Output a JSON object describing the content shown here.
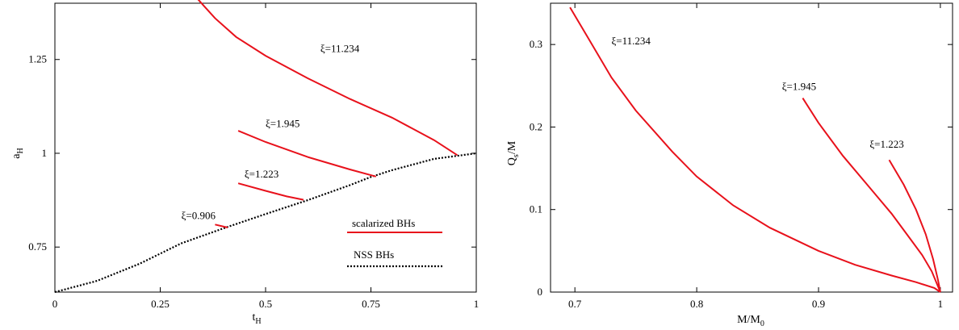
{
  "colors": {
    "scalarized": "#e8111b",
    "nss": "#000000"
  },
  "chart_data": [
    {
      "type": "line",
      "xlabel": "t",
      "xlabel_sub": "H",
      "ylabel": "a",
      "ylabel_sub": "H",
      "xlim": [
        0,
        1
      ],
      "ylim": [
        0.63,
        1.4
      ],
      "xticks": [
        0,
        0.25,
        0.5,
        0.75,
        1
      ],
      "xtick_labels": [
        "0",
        "0.25",
        "0.5",
        "0.75",
        "1"
      ],
      "yticks": [
        0.75,
        1,
        1.25
      ],
      "ytick_labels": [
        "0.75",
        "1",
        "1.25"
      ],
      "legend": {
        "position": "bottom-right",
        "entries": [
          {
            "label": "scalarized BHs",
            "style": "solid"
          },
          {
            "label": "NSS BHs",
            "style": "dotted"
          }
        ]
      },
      "series": [
        {
          "name": "NSS BHs",
          "style": "dotted",
          "points": [
            [
              0,
              0.63
            ],
            [
              0.1,
              0.66
            ],
            [
              0.2,
              0.705
            ],
            [
              0.3,
              0.76
            ],
            [
              0.4,
              0.8
            ],
            [
              0.5,
              0.838
            ],
            [
              0.6,
              0.875
            ],
            [
              0.7,
              0.915
            ],
            [
              0.75,
              0.937
            ],
            [
              0.8,
              0.955
            ],
            [
              0.9,
              0.985
            ],
            [
              1,
              1
            ]
          ]
        },
        {
          "name": "ξ=11.234",
          "style": "solid",
          "points": [
            [
              0.34,
              1.41
            ],
            [
              0.38,
              1.36
            ],
            [
              0.43,
              1.31
            ],
            [
              0.5,
              1.26
            ],
            [
              0.6,
              1.2
            ],
            [
              0.7,
              1.145
            ],
            [
              0.8,
              1.095
            ],
            [
              0.9,
              1.035
            ],
            [
              0.955,
              0.995
            ]
          ]
        },
        {
          "name": "ξ=1.945",
          "style": "solid",
          "points": [
            [
              0.435,
              1.06
            ],
            [
              0.5,
              1.03
            ],
            [
              0.6,
              0.99
            ],
            [
              0.7,
              0.957
            ],
            [
              0.762,
              0.938
            ]
          ]
        },
        {
          "name": "ξ=1.223",
          "style": "solid",
          "points": [
            [
              0.435,
              0.92
            ],
            [
              0.5,
              0.9
            ],
            [
              0.55,
              0.885
            ],
            [
              0.59,
              0.876
            ]
          ]
        },
        {
          "name": "ξ=0.906",
          "style": "solid",
          "points": [
            [
              0.38,
              0.81
            ],
            [
              0.41,
              0.802
            ]
          ]
        }
      ],
      "annotations": [
        {
          "text": "ξ=11.234",
          "x": 0.63,
          "y": 1.27
        },
        {
          "text": "ξ=1.945",
          "x": 0.5,
          "y": 1.07
        },
        {
          "text": "ξ=1.223",
          "x": 0.45,
          "y": 0.935
        },
        {
          "text": "ξ=0.906",
          "x": 0.3,
          "y": 0.825
        }
      ]
    },
    {
      "type": "line",
      "xlabel": "M/M",
      "xlabel_sub": "0",
      "ylabel": "Q",
      "ylabel_sub": "s",
      "ylabel_tail": "/M",
      "xlim": [
        0.68,
        1.01
      ],
      "ylim": [
        0,
        0.35
      ],
      "xticks": [
        0.7,
        0.8,
        0.9,
        1
      ],
      "xtick_labels": [
        "0.7",
        "0.8",
        "0.9",
        "1"
      ],
      "yticks": [
        0,
        0.1,
        0.2,
        0.3
      ],
      "ytick_labels": [
        "0",
        "0.1",
        "0.2",
        "0.3"
      ],
      "series": [
        {
          "name": "ξ=11.234",
          "style": "solid",
          "points": [
            [
              0.696,
              0.345
            ],
            [
              0.71,
              0.31
            ],
            [
              0.73,
              0.26
            ],
            [
              0.75,
              0.22
            ],
            [
              0.78,
              0.17
            ],
            [
              0.8,
              0.14
            ],
            [
              0.83,
              0.105
            ],
            [
              0.86,
              0.078
            ],
            [
              0.9,
              0.05
            ],
            [
              0.93,
              0.033
            ],
            [
              0.96,
              0.02
            ],
            [
              0.98,
              0.012
            ],
            [
              0.995,
              0.005
            ],
            [
              1,
              0
            ]
          ]
        },
        {
          "name": "ξ=1.945",
          "style": "solid",
          "points": [
            [
              0.887,
              0.235
            ],
            [
              0.9,
              0.205
            ],
            [
              0.92,
              0.165
            ],
            [
              0.94,
              0.13
            ],
            [
              0.96,
              0.095
            ],
            [
              0.975,
              0.065
            ],
            [
              0.985,
              0.045
            ],
            [
              0.993,
              0.025
            ],
            [
              1,
              0
            ]
          ]
        },
        {
          "name": "ξ=1.223",
          "style": "solid",
          "points": [
            [
              0.958,
              0.16
            ],
            [
              0.97,
              0.13
            ],
            [
              0.98,
              0.1
            ],
            [
              0.988,
              0.07
            ],
            [
              0.994,
              0.04
            ],
            [
              0.998,
              0.015
            ],
            [
              1,
              0
            ]
          ]
        }
      ],
      "annotations": [
        {
          "text": "ξ=11.234",
          "x": 0.73,
          "y": 0.3
        },
        {
          "text": "ξ=1.945",
          "x": 0.87,
          "y": 0.245
        },
        {
          "text": "ξ=1.223",
          "x": 0.942,
          "y": 0.175
        }
      ]
    }
  ]
}
